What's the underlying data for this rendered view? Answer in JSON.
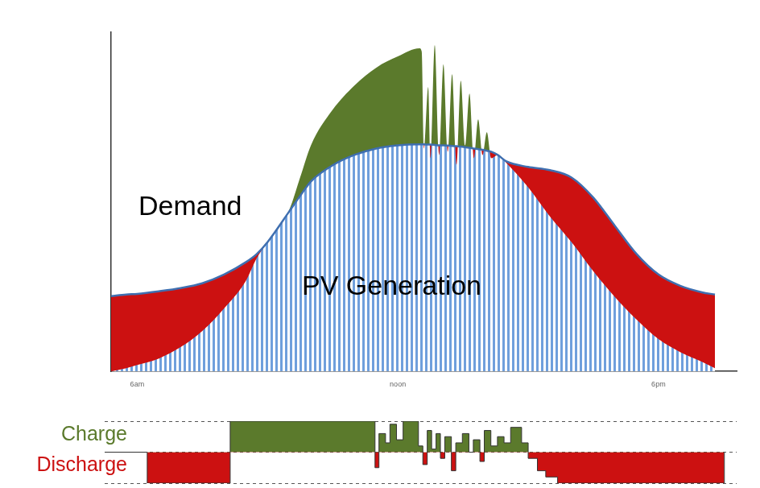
{
  "chart_data": [
    {
      "type": "area",
      "x": [
        5.4,
        5.75,
        6,
        6.5,
        7,
        7.5,
        8,
        8.5,
        8.75,
        9,
        9.5,
        9.75,
        10,
        10.5,
        11,
        11.5,
        12,
        12.5,
        12.55,
        12.6,
        12.7,
        12.75,
        12.85,
        12.95,
        13.05,
        13.15,
        13.25,
        13.35,
        13.45,
        13.55,
        13.65,
        13.75,
        13.85,
        13.95,
        14.05,
        14.15,
        14.3,
        14.5,
        15,
        15.5,
        16,
        16.5,
        17,
        17.5,
        18,
        18.5,
        19,
        19.3
      ],
      "xlim": [
        5.4,
        19.8
      ],
      "xticks": [
        {
          "value": 6,
          "label": "6am"
        },
        {
          "value": 12,
          "label": "noon"
        },
        {
          "value": 18,
          "label": "6pm"
        }
      ],
      "ylim": [
        0,
        105
      ],
      "tick_labels": "x",
      "grid": false,
      "series": [
        {
          "name": "Demand",
          "color": "#3f6fb0",
          "values": [
            23.3,
            23.8,
            24,
            24.8,
            25.8,
            27.3,
            30,
            33.8,
            36.3,
            40,
            49.5,
            54.3,
            58.8,
            63.8,
            67,
            69,
            70,
            70.3,
            70.3,
            70.3,
            70.2,
            70.2,
            70.1,
            70,
            70,
            69.9,
            69.8,
            69.7,
            69.6,
            69.4,
            69.2,
            69,
            68.8,
            68.6,
            68.3,
            68,
            67,
            65,
            63.3,
            62.3,
            60,
            53.8,
            45,
            36.3,
            30,
            26.5,
            24.5,
            23.8
          ]
        },
        {
          "name": "PV Generation",
          "color": "#6f9fdc",
          "values": [
            0,
            1,
            2,
            4,
            7.5,
            12.5,
            19.5,
            28,
            35,
            40,
            50,
            60,
            70,
            81,
            88.5,
            94,
            97.5,
            100,
            99,
            69,
            88,
            66,
            101,
            67,
            95,
            68,
            92,
            64,
            90,
            70,
            86,
            66,
            78,
            67,
            74,
            66,
            67,
            64.5,
            57,
            48,
            40,
            31,
            23,
            16,
            10,
            6,
            3,
            1
          ]
        }
      ]
    },
    {
      "type": "area",
      "line_style": "stepped",
      "x": [
        5.4,
        6.37,
        8.26,
        11.56,
        11.65,
        11.8,
        11.9,
        12.05,
        12.2,
        12.55,
        12.65,
        12.75,
        12.85,
        12.95,
        13.05,
        13.15,
        13.3,
        13.4,
        13.55,
        13.7,
        13.8,
        13.95,
        14.05,
        14.2,
        14.35,
        14.5,
        14.65,
        14.9,
        15.05,
        15.26,
        15.45,
        15.72,
        19.52
      ],
      "values": [
        0,
        -1,
        1,
        -0.5,
        0.6,
        0.3,
        0.9,
        0.4,
        1,
        0.2,
        -0.4,
        0.7,
        0.1,
        0.6,
        -0.2,
        0.5,
        -0.6,
        0.3,
        0.6,
        0,
        0.4,
        -0.3,
        0.7,
        0.2,
        0.5,
        0.3,
        0.8,
        0.3,
        -0.2,
        -0.6,
        -0.8,
        -1,
        0
      ],
      "xlim": [
        5.4,
        19.8
      ],
      "ylim": [
        -1,
        1
      ],
      "yticks": [
        -1,
        0,
        1
      ],
      "grid": true,
      "tick_labels": false,
      "annotations": [
        {
          "text": "Charge",
          "color": "#5b7a2c"
        },
        {
          "text": "Discharge",
          "color": "#cc1111"
        }
      ]
    }
  ]
}
